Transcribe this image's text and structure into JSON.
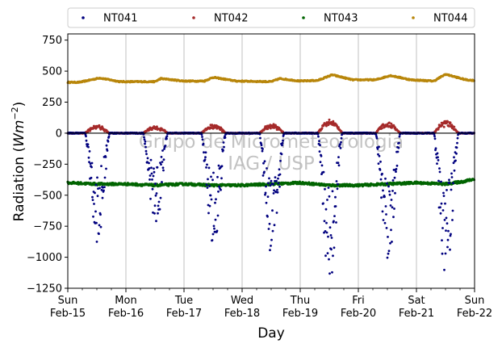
{
  "chart_data": {
    "type": "scatter",
    "xlabel": "Day",
    "ylabel_main": "Radiation (",
    "ylabel_unit": "Wm",
    "ylabel_exp": "−2",
    "ylabel_close": ")",
    "ylim": [
      -1250,
      800
    ],
    "yticks": [
      -1250,
      -1000,
      -750,
      -500,
      -250,
      0,
      250,
      500,
      750
    ],
    "ytick_labels": [
      "−1250",
      "−1000",
      "−750",
      "−500",
      "−250",
      "0",
      "250",
      "500",
      "750"
    ],
    "xlim_days": [
      0,
      7
    ],
    "xticks": [
      {
        "day": 0,
        "line1": "Sun",
        "line2": "Feb-15"
      },
      {
        "day": 1,
        "line1": "Mon",
        "line2": "Feb-16"
      },
      {
        "day": 2,
        "line1": "Tue",
        "line2": "Feb-17"
      },
      {
        "day": 3,
        "line1": "Wed",
        "line2": "Feb-18"
      },
      {
        "day": 4,
        "line1": "Thu",
        "line2": "Feb-19"
      },
      {
        "day": 5,
        "line1": "Fri",
        "line2": "Feb-20"
      },
      {
        "day": 6,
        "line1": "Sat",
        "line2": "Feb-21"
      },
      {
        "day": 7,
        "line1": "Sun",
        "line2": "Feb-22"
      }
    ],
    "grid_x": true,
    "zero_line": true,
    "legend_placement": "top, outside plot, 4 columns",
    "watermark_line1": "Grupo de Micrometeorologia",
    "watermark_line2": "IAG / USP",
    "series": [
      {
        "name": "NT041",
        "color": "#00007f",
        "description_of_pattern": "night near 0, daytime strongly negative",
        "night_value": 0,
        "day_minima": [
          -880,
          -760,
          -900,
          -1000,
          -1220,
          -1050,
          -1150
        ]
      },
      {
        "name": "NT042",
        "color": "#a52a2a",
        "night_value": 0,
        "day_maxima": [
          60,
          55,
          70,
          75,
          110,
          90,
          100
        ]
      },
      {
        "name": "NT043",
        "color": "#006400",
        "points": [
          [
            0,
            -400
          ],
          [
            0.5,
            -410
          ],
          [
            1,
            -410
          ],
          [
            1.5,
            -420
          ],
          [
            2,
            -410
          ],
          [
            2.5,
            -420
          ],
          [
            3,
            -420
          ],
          [
            3.5,
            -410
          ],
          [
            4,
            -400
          ],
          [
            4.5,
            -420
          ],
          [
            5,
            -420
          ],
          [
            5.5,
            -410
          ],
          [
            6,
            -400
          ],
          [
            6.5,
            -410
          ],
          [
            6.8,
            -390
          ],
          [
            7,
            -370
          ]
        ]
      },
      {
        "name": "NT044",
        "color": "#b8860b",
        "points": [
          [
            0,
            410
          ],
          [
            0.2,
            410
          ],
          [
            0.55,
            445
          ],
          [
            0.9,
            415
          ],
          [
            1.5,
            415
          ],
          [
            1.6,
            440
          ],
          [
            2,
            420
          ],
          [
            2.35,
            420
          ],
          [
            2.5,
            450
          ],
          [
            2.9,
            420
          ],
          [
            3.5,
            415
          ],
          [
            3.65,
            440
          ],
          [
            4,
            420
          ],
          [
            4.3,
            425
          ],
          [
            4.55,
            470
          ],
          [
            4.9,
            430
          ],
          [
            5.3,
            430
          ],
          [
            5.55,
            465
          ],
          [
            5.9,
            430
          ],
          [
            6.3,
            420
          ],
          [
            6.5,
            475
          ],
          [
            6.85,
            430
          ],
          [
            7,
            425
          ]
        ]
      }
    ]
  }
}
